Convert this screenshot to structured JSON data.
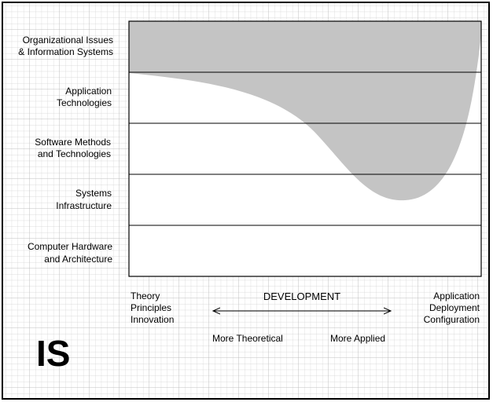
{
  "title": "IS",
  "rows": [
    [
      "Organizational Issues",
      "& Information Systems"
    ],
    [
      "Application",
      "Technologies"
    ],
    [
      "Software Methods",
      "and Technologies"
    ],
    [
      "Systems",
      "Infrastructure"
    ],
    [
      "Computer Hardware",
      "and Architecture"
    ]
  ],
  "axis": {
    "label": "DEVELOPMENT",
    "left": [
      "Theory",
      "Principles",
      "Innovation"
    ],
    "right": [
      "Application",
      "Deployment",
      "Configuration"
    ],
    "left_arrow": "More Theoretical",
    "right_arrow": "More Applied"
  }
}
